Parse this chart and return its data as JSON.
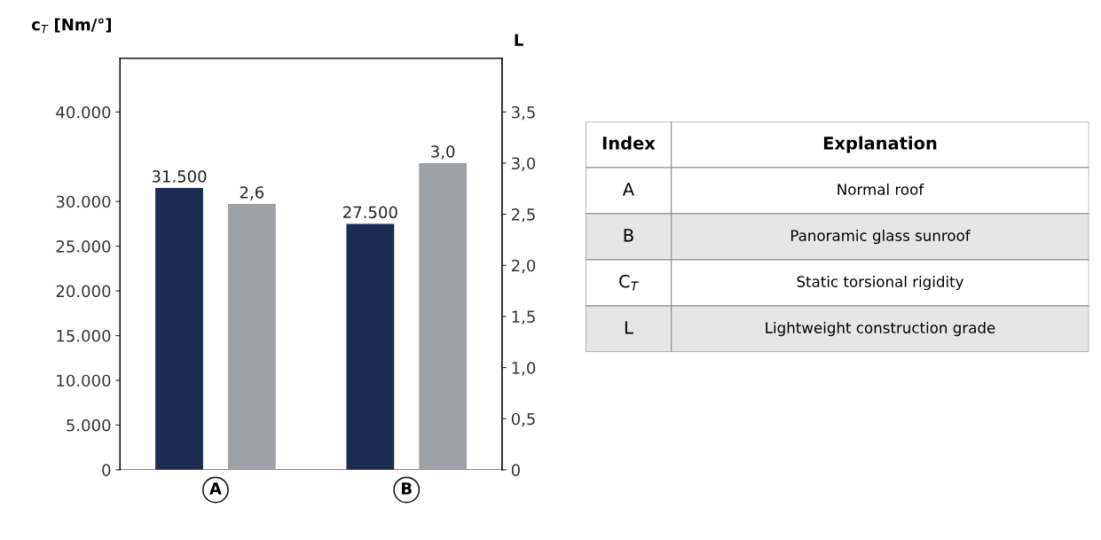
{
  "chart_data": [
    {
      "type": "bar",
      "ylabel": "c$_{T}$ [Nm/°]",
      "y2label": "L",
      "categories": [
        "A",
        "B"
      ],
      "series": [
        {
          "color": "#1c2b52",
          "values": [
            31500,
            27500
          ],
          "value_labels": [
            "31.500",
            "27.500"
          ]
        },
        {
          "color": "#9ea3aa",
          "axis": "y2",
          "values": [
            2.6,
            3.0
          ],
          "value_labels": [
            "2,6",
            "3,0"
          ]
        }
      ],
      "ylim": [
        0,
        46000
      ],
      "yticks": [
        {
          "value": 0,
          "label": "0"
        },
        {
          "value": 5000,
          "label": "5.000"
        },
        {
          "value": 10000,
          "label": "10.000"
        },
        {
          "value": 15000,
          "label": "15.000"
        },
        {
          "value": 20000,
          "label": "20.000"
        },
        {
          "value": 25000,
          "label": "25.000"
        },
        {
          "value": 30000,
          "label": "30.000"
        },
        {
          "value": 40000,
          "label": "40.000"
        }
      ],
      "y2lim": [
        0,
        4.025
      ],
      "y2ticks": [
        {
          "value": 0,
          "label": "0"
        },
        {
          "value": 0.5,
          "label": "0,5"
        },
        {
          "value": 1,
          "label": "1,0"
        },
        {
          "value": 1.5,
          "label": "1,5"
        },
        {
          "value": 2,
          "label": "2,0"
        },
        {
          "value": 2.5,
          "label": "2,5"
        },
        {
          "value": 3,
          "label": "3,0"
        },
        {
          "value": 3.5,
          "label": "3,5"
        }
      ],
      "grid": false
    },
    {
      "type": "other",
      "annotations": [
        "Index",
        "Explanation",
        "A",
        "Normal roof",
        "B",
        "Panoramic glass sunroof",
        "C$_{T}$",
        "Static torsional rigidity",
        "L",
        "Lightweight construction grade"
      ]
    }
  ]
}
